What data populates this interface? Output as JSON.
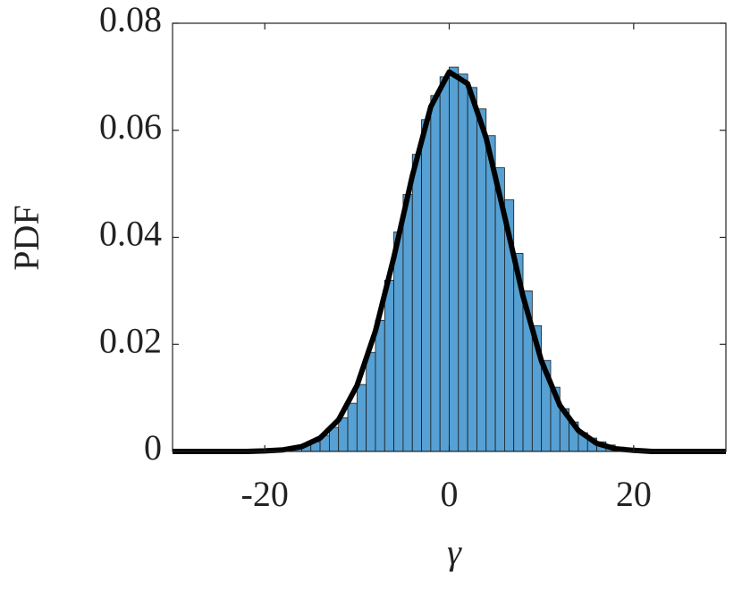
{
  "chart_data": {
    "type": "histogram",
    "xlabel": "γ",
    "ylabel": "PDF",
    "bins": [
      -19,
      -18,
      -17,
      -16,
      -15,
      -14,
      -13,
      -12,
      -11,
      -10,
      -9,
      -8,
      -7,
      -6,
      -5,
      -4,
      -3,
      -2,
      -1,
      0,
      1,
      2,
      3,
      4,
      5,
      6,
      7,
      8,
      9,
      10,
      11,
      12,
      13,
      14,
      15,
      16,
      17,
      18,
      19,
      20,
      21,
      22,
      23,
      24,
      25,
      26
    ],
    "values": [
      0.0002,
      0.0003,
      0.0007,
      0.0014,
      0.0018,
      0.003,
      0.0045,
      0.0063,
      0.009,
      0.0125,
      0.0185,
      0.0245,
      0.032,
      0.041,
      0.048,
      0.0555,
      0.062,
      0.0665,
      0.07,
      0.0718,
      0.0705,
      0.068,
      0.064,
      0.059,
      0.053,
      0.047,
      0.037,
      0.03,
      0.0235,
      0.017,
      0.012,
      0.008,
      0.0055,
      0.0035,
      0.0025,
      0.0018,
      0.0012,
      0.0008,
      0.0005,
      0.0004,
      0.0003,
      0.0002,
      0.0002,
      0.0002,
      0.0001
    ],
    "color": "#56a0d3",
    "fit": {
      "type": "line",
      "color": "#000000",
      "x": [
        -30,
        -26,
        -22,
        -20,
        -18,
        -16,
        -14,
        -12,
        -10,
        -8,
        -6,
        -4,
        -2,
        0,
        2,
        4,
        6,
        8,
        10,
        12,
        14,
        16,
        18,
        20,
        22,
        26,
        30
      ],
      "values": [
        0,
        0,
        0,
        0.0001,
        0.0003,
        0.0009,
        0.0025,
        0.0059,
        0.0123,
        0.0225,
        0.0363,
        0.0515,
        0.0644,
        0.0709,
        0.0687,
        0.0586,
        0.044,
        0.029,
        0.0169,
        0.0086,
        0.0039,
        0.0015,
        0.0005,
        0.0002,
        0,
        0,
        0
      ]
    },
    "xlim": [
      -30,
      30
    ],
    "xticks": [
      -20,
      0,
      20
    ],
    "ylim": [
      0,
      0.08
    ],
    "yticks": [
      0,
      0.02,
      0.04,
      0.06,
      0.08
    ]
  }
}
